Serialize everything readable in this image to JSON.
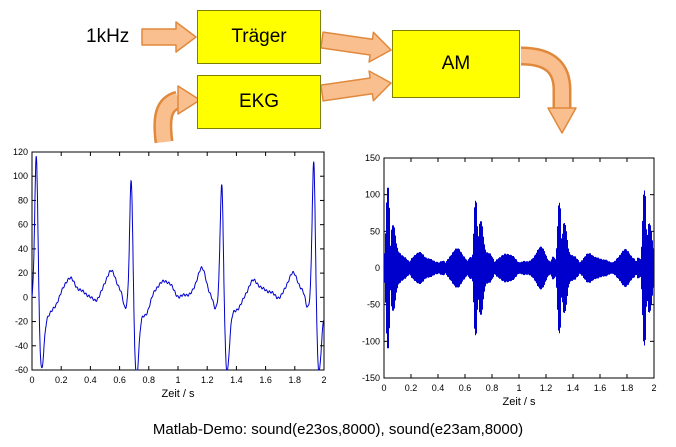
{
  "diagram": {
    "input_label": "1kHz",
    "traeger_label": "Träger",
    "ekg_label": "EKG",
    "am_label": "AM",
    "box_fill": "#FFFF00",
    "box_border": "#7F7F00",
    "arrow_fill": "#FABF8F",
    "arrow_border": "#E0893C"
  },
  "caption": {
    "text": "Matlab-Demo:  sound(e23os,8000),  sound(e23am,8000)"
  },
  "chart_data": [
    {
      "type": "line",
      "name": "ekg-signal",
      "title": "",
      "xlabel": "Zeit / s",
      "ylabel": "",
      "xlim": [
        0,
        2
      ],
      "ylim": [
        -60,
        120
      ],
      "xticks": [
        0,
        0.2,
        0.4,
        0.6,
        0.8,
        1,
        1.2,
        1.4,
        1.6,
        1.8,
        2
      ],
      "yticks": [
        -60,
        -40,
        -20,
        0,
        20,
        40,
        60,
        80,
        100,
        120
      ],
      "grid": false,
      "line_color": "#0000CC",
      "signal": "ekg",
      "beats": [
        {
          "t": 0.03,
          "peak": 122,
          "dip": -52
        },
        {
          "t": 0.68,
          "peak": 105,
          "dip": -57
        },
        {
          "t": 1.3,
          "peak": 99,
          "dip": -52
        },
        {
          "t": 1.93,
          "peak": 118,
          "dip": -55
        }
      ]
    },
    {
      "type": "line",
      "name": "am-modulated-signal",
      "title": "",
      "xlabel": "Zeit / s",
      "ylabel": "",
      "xlim": [
        0,
        2
      ],
      "ylim": [
        -150,
        150
      ],
      "xticks": [
        0,
        0.2,
        0.4,
        0.6,
        0.8,
        1,
        1.2,
        1.4,
        1.6,
        1.8,
        2
      ],
      "yticks": [
        -150,
        -100,
        -50,
        0,
        50,
        100,
        150
      ],
      "grid": false,
      "line_color": "#0000CC",
      "signal": "am",
      "envelope": {
        "base": 7,
        "scale": 0.88
      },
      "beats": [
        {
          "t": 0.03,
          "peak": 122,
          "dip": -52
        },
        {
          "t": 0.68,
          "peak": 105,
          "dip": -57
        },
        {
          "t": 1.3,
          "peak": 99,
          "dip": -52
        },
        {
          "t": 1.93,
          "peak": 118,
          "dip": -55
        }
      ]
    }
  ]
}
